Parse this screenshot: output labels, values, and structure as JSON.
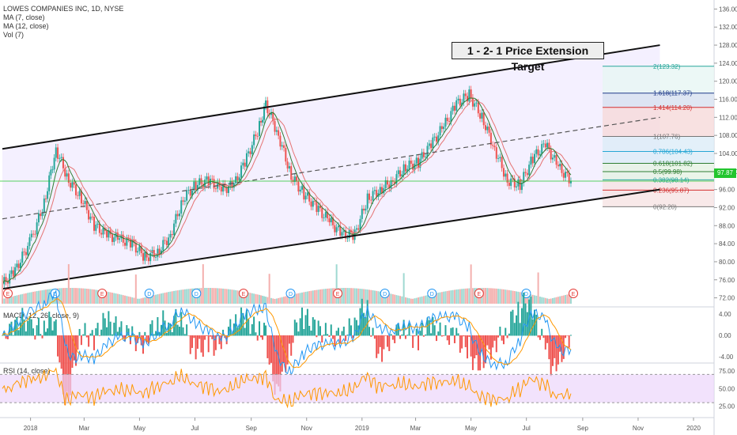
{
  "title": "LOWES COMPANIES INC, 1D, NYSE",
  "indicators": [
    "MA (7, close)",
    "MA (12, close)",
    "Vol (7)"
  ],
  "macd_label": "MACD (12, 26, close, 9)",
  "rsi_label": "RSI (14, close)",
  "target_label": "1 - 2- 1 Price Extension Target",
  "last_price": "97.87",
  "price_ticks": [
    "136.00",
    "132.00",
    "128.00",
    "124.00",
    "120.00",
    "116.00",
    "112.00",
    "108.00",
    "104.00",
    "100.00",
    "96.00",
    "92.00",
    "88.00",
    "84.00",
    "80.00",
    "76.00",
    "72.00"
  ],
  "macd_ticks": [
    "4.00",
    "0.00",
    "-4.00"
  ],
  "rsi_ticks": [
    "75.00",
    "50.00",
    "25.00"
  ],
  "time_ticks": [
    "2018",
    "Mar",
    "May",
    "Jul",
    "Sep",
    "Nov",
    "2019",
    "Mar",
    "May",
    "Jul",
    "Sep",
    "Nov",
    "2020"
  ],
  "fib_levels": [
    {
      "label": "2(123.32)",
      "value": 123.32,
      "color": "#26a69a"
    },
    {
      "label": "1.618(117.37)",
      "value": 117.37,
      "color": "#1e3a8a"
    },
    {
      "label": "1.414(114.20)",
      "value": 114.2,
      "color": "#d32f2f"
    },
    {
      "label": "1(107.76)",
      "value": 107.76,
      "color": "#777777"
    },
    {
      "label": "0.786(104.43)",
      "value": 104.43,
      "color": "#26a6d4"
    },
    {
      "label": "0.618(101.82)",
      "value": 101.82,
      "color": "#2e7d32"
    },
    {
      "label": "0.5(99.98)",
      "value": 99.98,
      "color": "#2e7d32"
    },
    {
      "label": "0.382(98.14)",
      "value": 98.14,
      "color": "#26a69a"
    },
    {
      "label": "0.236(95.87)",
      "value": 95.87,
      "color": "#d32f2f"
    },
    {
      "label": "0(92.20)",
      "value": 92.2,
      "color": "#777777"
    }
  ],
  "earnings_markers": [
    "E",
    "D",
    "E",
    "D",
    "D",
    "E",
    "D",
    "E",
    "D",
    "D",
    "E",
    "D",
    "E"
  ],
  "colors": {
    "up": "#26a69a",
    "down": "#ef5350",
    "ma7": "#2e7d32",
    "ma12": "#e57373",
    "macd": "#2196f3",
    "signal": "#ff9800",
    "rsi": "#ff9800",
    "channel_fill": "#f4f0ff",
    "rsi_band": "#ecd6fb",
    "price_line": "#22c52e"
  },
  "chart_data": {
    "type": "candlestick",
    "symbol": "LOWES COMPANIES INC",
    "interval": "1D",
    "exchange": "NYSE",
    "ylim": [
      70,
      138
    ],
    "close_series_approx": {
      "x": [
        "2017-12-01",
        "2017-12-15",
        "2018-01-02",
        "2018-01-16",
        "2018-01-29",
        "2018-02-12",
        "2018-02-26",
        "2018-03-12",
        "2018-03-26",
        "2018-04-09",
        "2018-04-23",
        "2018-05-07",
        "2018-05-21",
        "2018-06-04",
        "2018-06-18",
        "2018-07-02",
        "2018-07-16",
        "2018-07-30",
        "2018-08-13",
        "2018-08-27",
        "2018-09-10",
        "2018-09-17",
        "2018-10-01",
        "2018-10-15",
        "2018-10-29",
        "2018-11-12",
        "2018-11-26",
        "2018-12-10",
        "2018-12-24",
        "2019-01-07",
        "2019-01-21",
        "2019-02-04",
        "2019-02-18",
        "2019-03-04",
        "2019-03-18",
        "2019-04-01",
        "2019-04-15",
        "2019-04-29",
        "2019-05-13",
        "2019-05-27",
        "2019-06-10",
        "2019-06-24",
        "2019-07-08",
        "2019-07-22",
        "2019-08-05",
        "2019-08-19"
      ],
      "y": [
        75,
        78,
        85,
        93,
        105,
        98,
        94,
        88,
        86,
        85,
        84,
        81,
        82,
        86,
        94,
        97,
        98,
        96,
        97,
        103,
        110,
        115,
        108,
        99,
        95,
        92,
        89,
        86,
        86,
        94,
        96,
        98,
        101,
        102,
        106,
        110,
        115,
        117,
        112,
        105,
        98,
        97,
        103,
        106,
        101,
        97.87
      ]
    },
    "channel": {
      "upper": [
        [
          "2017-12-01",
          105
        ],
        [
          "2019-11-25",
          128
        ]
      ],
      "lower": [
        [
          "2017-12-01",
          74
        ],
        [
          "2019-11-25",
          96
        ]
      ]
    },
    "rsi_last": 47,
    "macd_last": -0.6
  }
}
